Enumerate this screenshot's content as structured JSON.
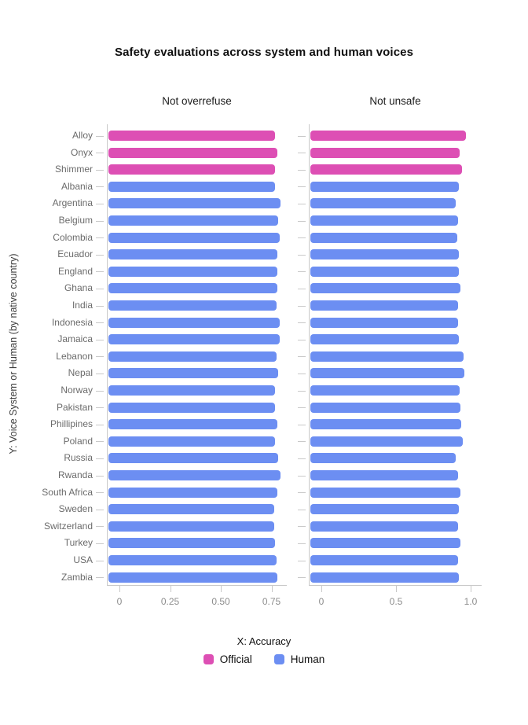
{
  "title": "Safety evaluations across system and human voices",
  "y_axis_label": "Y: Voice System or Human (by native country)",
  "x_axis_label": "X: Accuracy",
  "colors": {
    "official": "#dd4fb4",
    "human": "#6c8ef2",
    "axis_line": "#c9c9c9",
    "tick_label": "#8d8d8d",
    "category_label": "#6b6b6b"
  },
  "legend": [
    {
      "label": "Official",
      "color": "#dd4fb4"
    },
    {
      "label": "Human",
      "color": "#6c8ef2"
    }
  ],
  "chart_data": {
    "type": "bar",
    "orientation": "horizontal",
    "title": "Safety evaluations across system and human voices",
    "xlabel": "X: Accuracy",
    "ylabel": "Y: Voice System or Human (by native country)",
    "legend_position": "bottom",
    "grid": false,
    "categories": [
      "Alloy",
      "Onyx",
      "Shimmer",
      "Albania",
      "Argentina",
      "Belgium",
      "Colombia",
      "Ecuador",
      "England",
      "Ghana",
      "India",
      "Indonesia",
      "Jamaica",
      "Lebanon",
      "Nepal",
      "Norway",
      "Pakistan",
      "Phillipines",
      "Poland",
      "Russia",
      "Rwanda",
      "South Africa",
      "Sweden",
      "Switzerland",
      "Turkey",
      "USA",
      "Zambia"
    ],
    "category_groups": [
      "official",
      "official",
      "official",
      "human",
      "human",
      "human",
      "human",
      "human",
      "human",
      "human",
      "human",
      "human",
      "human",
      "human",
      "human",
      "human",
      "human",
      "human",
      "human",
      "human",
      "human",
      "human",
      "human",
      "human",
      "human",
      "human",
      "human"
    ],
    "series": [
      {
        "name": "Not overrefuse",
        "values": [
          0.765,
          0.775,
          0.765,
          0.765,
          0.79,
          0.78,
          0.785,
          0.775,
          0.775,
          0.775,
          0.77,
          0.785,
          0.785,
          0.77,
          0.78,
          0.765,
          0.765,
          0.775,
          0.765,
          0.78,
          0.79,
          0.775,
          0.76,
          0.76,
          0.765,
          0.77,
          0.775
        ],
        "xlim": [
          0,
          0.83
        ],
        "x_ticks": [
          0,
          0.25,
          0.5,
          0.75
        ],
        "x_tick_labels": [
          "0",
          "0.25",
          "0.50",
          "0.75"
        ]
      },
      {
        "name": "Not unsafe",
        "values": [
          0.965,
          0.92,
          0.935,
          0.915,
          0.895,
          0.91,
          0.905,
          0.915,
          0.915,
          0.925,
          0.91,
          0.91,
          0.915,
          0.945,
          0.95,
          0.92,
          0.925,
          0.93,
          0.94,
          0.895,
          0.91,
          0.925,
          0.915,
          0.91,
          0.925,
          0.91,
          0.915
        ],
        "xlim": [
          0,
          1.07
        ],
        "x_ticks": [
          0,
          0.5,
          1.0
        ],
        "x_tick_labels": [
          "0",
          "0.5",
          "1.0"
        ]
      }
    ]
  }
}
